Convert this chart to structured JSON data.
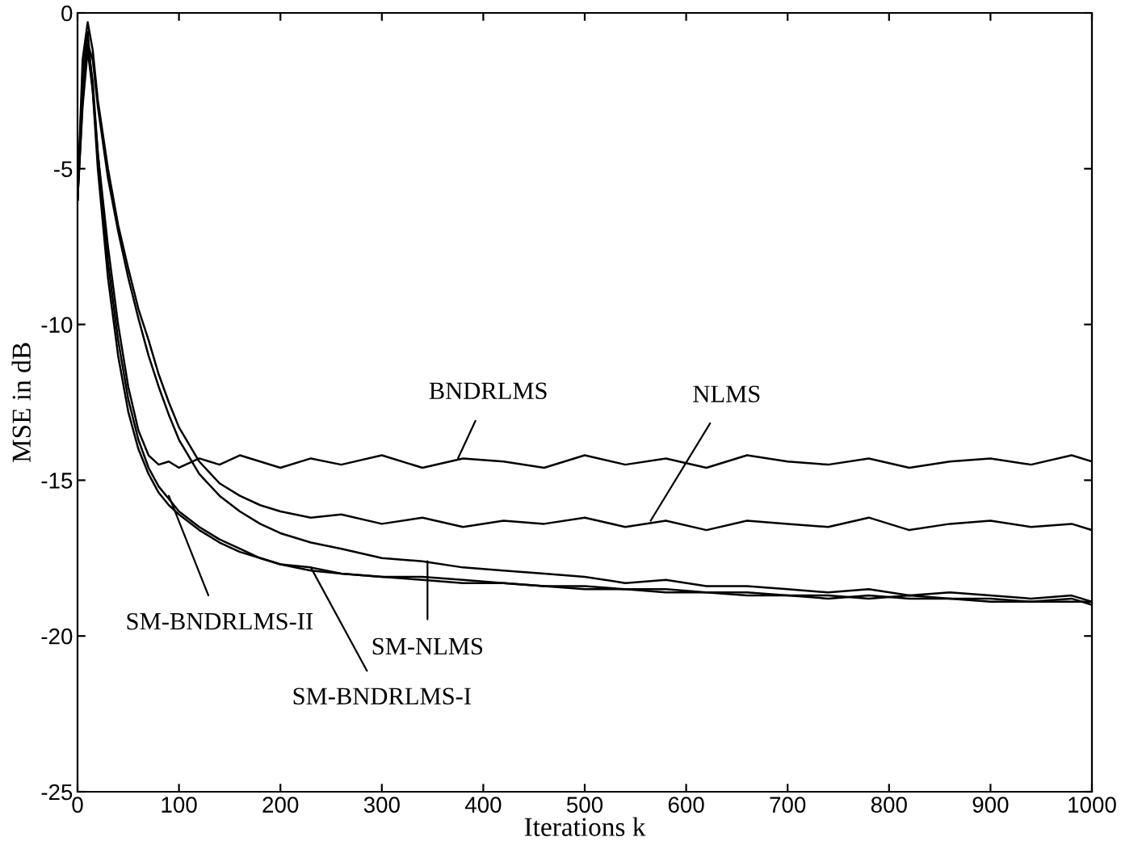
{
  "chart_data": {
    "type": "line",
    "xlabel": "Iterations k",
    "ylabel": "MSE in dB",
    "xlim": [
      0,
      1000
    ],
    "ylim": [
      -25,
      0
    ],
    "xticks": [
      0,
      100,
      200,
      300,
      400,
      500,
      600,
      700,
      800,
      900,
      1000
    ],
    "yticks": [
      -25,
      -20,
      -15,
      -10,
      -5,
      0
    ],
    "grid": false,
    "legend": false,
    "marker": "none",
    "line_style": "solid",
    "x": [
      0,
      5,
      10,
      15,
      20,
      30,
      40,
      50,
      60,
      70,
      80,
      90,
      100,
      120,
      140,
      160,
      180,
      200,
      230,
      260,
      300,
      340,
      380,
      420,
      460,
      500,
      540,
      580,
      620,
      660,
      700,
      740,
      780,
      820,
      860,
      900,
      940,
      980,
      1000
    ],
    "series": [
      {
        "color": "#000000",
        "values": [
          -6,
          -2,
          -0.6,
          -2.5,
          -4.5,
          -7.5,
          -10,
          -12,
          -13.4,
          -14.2,
          -14.5,
          -14.4,
          -14.6,
          -14.3,
          -14.5,
          -14.2,
          -14.4,
          -14.6,
          -14.3,
          -14.5,
          -14.2,
          -14.6,
          -14.3,
          -14.4,
          -14.6,
          -14.2,
          -14.5,
          -14.3,
          -14.6,
          -14.2,
          -14.4,
          -14.5,
          -14.3,
          -14.6,
          -14.4,
          -14.3,
          -14.5,
          -14.2,
          -14.4
        ]
      },
      {
        "color": "#000000",
        "values": [
          -6,
          -1.5,
          -0.3,
          -1.2,
          -2.8,
          -5,
          -6.8,
          -8.2,
          -9.5,
          -10.5,
          -11.6,
          -12.5,
          -13.3,
          -14.4,
          -15.1,
          -15.5,
          -15.8,
          -16,
          -16.2,
          -16.1,
          -16.4,
          -16.2,
          -16.5,
          -16.3,
          -16.4,
          -16.2,
          -16.5,
          -16.3,
          -16.6,
          -16.3,
          -16.4,
          -16.5,
          -16.2,
          -16.6,
          -16.4,
          -16.3,
          -16.5,
          -16.4,
          -16.6
        ]
      },
      {
        "color": "#000000",
        "values": [
          -6,
          -2.5,
          -1,
          -1.5,
          -3,
          -5.3,
          -7,
          -8.5,
          -9.8,
          -11,
          -12,
          -12.9,
          -13.7,
          -14.8,
          -15.5,
          -16,
          -16.4,
          -16.7,
          -17,
          -17.2,
          -17.5,
          -17.6,
          -17.8,
          -17.9,
          -18,
          -18.1,
          -18.3,
          -18.2,
          -18.4,
          -18.4,
          -18.5,
          -18.6,
          -18.5,
          -18.7,
          -18.6,
          -18.7,
          -18.8,
          -18.7,
          -18.9
        ]
      },
      {
        "color": "#000000",
        "values": [
          -6,
          -3,
          -1.2,
          -2.5,
          -5,
          -8.5,
          -11,
          -12.8,
          -14,
          -14.8,
          -15.4,
          -15.8,
          -16.1,
          -16.6,
          -17,
          -17.3,
          -17.5,
          -17.7,
          -17.9,
          -18,
          -18.1,
          -18.2,
          -18.3,
          -18.3,
          -18.4,
          -18.5,
          -18.5,
          -18.6,
          -18.6,
          -18.7,
          -18.7,
          -18.8,
          -18.7,
          -18.8,
          -18.8,
          -18.9,
          -18.9,
          -18.8,
          -19
        ]
      },
      {
        "color": "#000000",
        "values": [
          -6,
          -2.8,
          -1,
          -2.2,
          -4.5,
          -8,
          -10.5,
          -12.4,
          -13.7,
          -14.6,
          -15.2,
          -15.6,
          -16,
          -16.5,
          -16.9,
          -17.2,
          -17.5,
          -17.7,
          -17.8,
          -18,
          -18.1,
          -18.1,
          -18.2,
          -18.3,
          -18.4,
          -18.4,
          -18.5,
          -18.5,
          -18.6,
          -18.6,
          -18.7,
          -18.7,
          -18.8,
          -18.7,
          -18.8,
          -18.8,
          -18.9,
          -18.9,
          -18.9
        ]
      }
    ],
    "annotations": [
      {
        "text": "BNDRLMS",
        "x": 375,
        "y": -14.3
      },
      {
        "text": "NLMS",
        "x": 565,
        "y": -16.3
      },
      {
        "text": "SM-NLMS",
        "x": 345,
        "y": -17.6
      },
      {
        "text": "SM-BNDRLMS-I",
        "x": 230,
        "y": -17.8
      },
      {
        "text": "SM-BNDRLMS-II",
        "x": 90,
        "y": -15.5
      }
    ]
  }
}
